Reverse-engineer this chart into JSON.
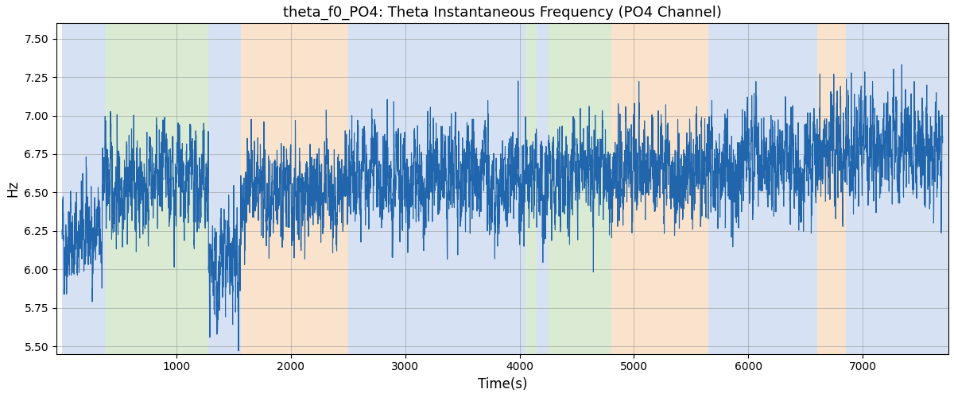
{
  "title": "theta_f0_PO4: Theta Instantaneous Frequency (PO4 Channel)",
  "xlabel": "Time(s)",
  "ylabel": "Hz",
  "ylim": [
    5.45,
    7.6
  ],
  "xlim": [
    -50,
    7750
  ],
  "bg_color": "white",
  "line_color": "#2166ac",
  "line_width": 0.8,
  "title_fontsize": 13,
  "label_fontsize": 12,
  "seed": 42,
  "n_points": 7700,
  "bands": [
    {
      "start": 0,
      "end": 380,
      "color": "#aec6e8",
      "alpha": 0.5
    },
    {
      "start": 380,
      "end": 1280,
      "color": "#b6d7a8",
      "alpha": 0.5
    },
    {
      "start": 1280,
      "end": 1560,
      "color": "#aec6e8",
      "alpha": 0.5
    },
    {
      "start": 1560,
      "end": 2500,
      "color": "#f4c89a",
      "alpha": 0.5
    },
    {
      "start": 2500,
      "end": 3950,
      "color": "#aec6e8",
      "alpha": 0.5
    },
    {
      "start": 3950,
      "end": 4050,
      "color": "#aec6e8",
      "alpha": 0.5
    },
    {
      "start": 4050,
      "end": 4150,
      "color": "#b6d7a8",
      "alpha": 0.5
    },
    {
      "start": 4150,
      "end": 4250,
      "color": "#aec6e8",
      "alpha": 0.5
    },
    {
      "start": 4250,
      "end": 4800,
      "color": "#b6d7a8",
      "alpha": 0.5
    },
    {
      "start": 4800,
      "end": 5650,
      "color": "#f4c89a",
      "alpha": 0.5
    },
    {
      "start": 5650,
      "end": 6600,
      "color": "#aec6e8",
      "alpha": 0.5
    },
    {
      "start": 6600,
      "end": 6850,
      "color": "#f4c89a",
      "alpha": 0.5
    },
    {
      "start": 6850,
      "end": 7750,
      "color": "#aec6e8",
      "alpha": 0.5
    }
  ],
  "segments": [
    {
      "start": 0,
      "end": 350,
      "mean": 6.2,
      "std": 0.22
    },
    {
      "start": 350,
      "end": 1280,
      "mean": 6.55,
      "std": 0.16
    },
    {
      "start": 1280,
      "end": 1560,
      "mean": 6.0,
      "std": 0.28
    },
    {
      "start": 1560,
      "end": 2500,
      "mean": 6.5,
      "std": 0.2
    },
    {
      "start": 2500,
      "end": 4250,
      "mean": 6.6,
      "std": 0.2
    },
    {
      "start": 4250,
      "end": 4800,
      "mean": 6.65,
      "std": 0.18
    },
    {
      "start": 4800,
      "end": 5650,
      "mean": 6.65,
      "std": 0.22
    },
    {
      "start": 5650,
      "end": 6600,
      "mean": 6.7,
      "std": 0.2
    },
    {
      "start": 6600,
      "end": 7700,
      "mean": 6.8,
      "std": 0.2
    }
  ],
  "ar_coef": 0.72,
  "noise_scale": 0.12,
  "yticks": [
    5.5,
    5.75,
    6.0,
    6.25,
    6.5,
    6.75,
    7.0,
    7.25,
    7.5
  ],
  "xticks": [
    1000,
    2000,
    3000,
    4000,
    5000,
    6000,
    7000
  ]
}
